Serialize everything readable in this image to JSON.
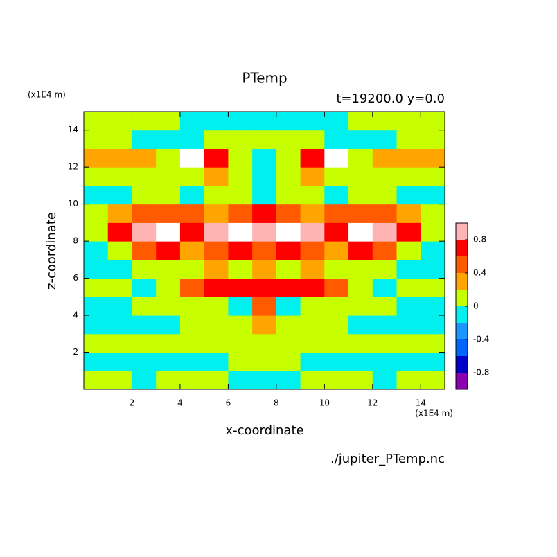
{
  "chart_data": {
    "type": "contour",
    "title": "PTemp",
    "subtitle": "t=19200.0 y=0.0",
    "xlabel": "x-coordinate",
    "ylabel": "z-coordinate",
    "xunit": "(x1E4 m)",
    "yunit": "(x1E4 m)",
    "footer": "./jupiter_PTemp.nc",
    "xlim": [
      0,
      15
    ],
    "ylim": [
      0,
      15
    ],
    "xticks": [
      2,
      4,
      6,
      8,
      10,
      12,
      14
    ],
    "yticks": [
      2,
      4,
      6,
      8,
      10,
      12,
      14
    ],
    "x": [
      0.5,
      1.5,
      2.5,
      3.5,
      4.5,
      5.5,
      6.5,
      7.5,
      8.5,
      9.5,
      10.5,
      11.5,
      12.5,
      13.5,
      14.5
    ],
    "y": [
      0.5,
      1.5,
      2.5,
      3.5,
      4.5,
      5.5,
      6.5,
      7.5,
      8.5,
      9.5,
      10.5,
      11.5,
      12.5,
      13.5,
      14.5
    ],
    "z": [
      [
        0.1,
        0.1,
        -0.1,
        0.1,
        0.1,
        0.1,
        -0.1,
        -0.1,
        -0.1,
        0.1,
        0.1,
        0.1,
        -0.1,
        0.1,
        0.1
      ],
      [
        -0.1,
        -0.1,
        -0.1,
        -0.1,
        -0.1,
        -0.1,
        0.1,
        0.1,
        0.1,
        -0.1,
        -0.1,
        -0.1,
        -0.1,
        -0.1,
        -0.1
      ],
      [
        0.1,
        0.1,
        0.1,
        0.1,
        0.1,
        0.1,
        0.1,
        0.1,
        0.1,
        0.1,
        0.1,
        0.1,
        0.1,
        0.1,
        0.1
      ],
      [
        -0.1,
        -0.1,
        -0.1,
        -0.1,
        0.1,
        0.1,
        0.1,
        0.3,
        0.1,
        0.1,
        0.1,
        -0.1,
        -0.1,
        -0.1,
        -0.1
      ],
      [
        -0.1,
        -0.1,
        0.1,
        0.1,
        0.1,
        0.1,
        -0.1,
        0.5,
        -0.1,
        0.1,
        0.1,
        0.1,
        0.1,
        -0.1,
        -0.1
      ],
      [
        0.1,
        0.1,
        -0.1,
        0.1,
        0.5,
        0.7,
        0.7,
        0.7,
        0.7,
        0.7,
        0.5,
        0.1,
        -0.1,
        0.1,
        0.1
      ],
      [
        -0.1,
        -0.1,
        0.1,
        0.1,
        0.1,
        0.3,
        0.1,
        0.3,
        0.1,
        0.3,
        0.1,
        0.1,
        0.1,
        -0.1,
        -0.1
      ],
      [
        -0.1,
        0.1,
        0.5,
        0.7,
        0.3,
        0.5,
        0.7,
        0.5,
        0.7,
        0.5,
        0.3,
        0.7,
        0.5,
        0.1,
        -0.1
      ],
      [
        0.1,
        0.7,
        0.9,
        1.1,
        0.7,
        0.9,
        1.1,
        0.9,
        1.1,
        0.9,
        0.7,
        1.1,
        0.9,
        0.7,
        0.1
      ],
      [
        0.1,
        0.3,
        0.5,
        0.5,
        0.5,
        0.3,
        0.5,
        0.7,
        0.5,
        0.3,
        0.5,
        0.5,
        0.5,
        0.3,
        0.1
      ],
      [
        -0.1,
        -0.1,
        0.1,
        0.1,
        -0.1,
        0.1,
        0.1,
        -0.1,
        0.1,
        0.1,
        -0.1,
        0.1,
        0.1,
        -0.1,
        -0.1
      ],
      [
        0.1,
        0.1,
        0.1,
        0.1,
        0.1,
        0.3,
        0.1,
        -0.1,
        0.1,
        0.3,
        0.1,
        0.1,
        0.1,
        0.1,
        0.1
      ],
      [
        0.3,
        0.3,
        0.3,
        0.1,
        1.1,
        0.7,
        0.1,
        -0.1,
        0.1,
        0.7,
        1.1,
        0.1,
        0.3,
        0.3,
        0.3
      ],
      [
        0.1,
        0.1,
        -0.1,
        -0.1,
        -0.1,
        0.1,
        0.1,
        0.1,
        0.1,
        0.1,
        -0.1,
        -0.1,
        -0.1,
        0.1,
        0.1
      ],
      [
        0.1,
        0.1,
        0.1,
        0.1,
        -0.1,
        -0.1,
        -0.1,
        -0.1,
        -0.1,
        -0.1,
        -0.1,
        0.1,
        0.1,
        0.1,
        0.1
      ]
    ],
    "levels": [
      -1,
      -0.8,
      -0.6,
      -0.4,
      -0.2,
      0,
      0.2,
      0.4,
      0.6,
      0.8,
      1
    ],
    "colors": [
      "#8a00b0",
      "#0000c8",
      "#0064ff",
      "#1e96ff",
      "#00f0f0",
      "#c8ff00",
      "#ffa500",
      "#ff5a00",
      "#ff0000",
      "#ffb4b4"
    ],
    "over_color": "#ffffff",
    "cbar_ticks": [
      -0.8,
      -0.4,
      0,
      0.4,
      0.8
    ]
  }
}
